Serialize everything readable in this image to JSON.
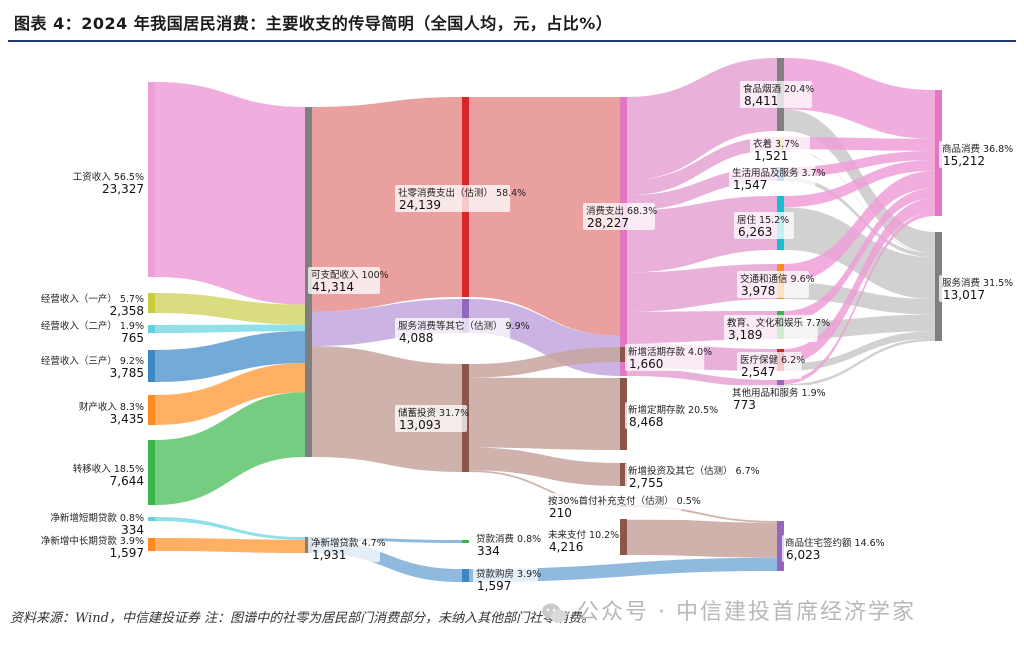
{
  "title": "图表 4：2024 年我国居民消费：主要收支的传导简明（全国人均，元，占比%）",
  "footer": "资料来源：Wind，中信建投证券  注：图谱中的社零为居民部门消费部分，未纳入其他部门社零消费。",
  "watermark": "公众号 · 中信建投首席经济学家",
  "chart_data": {
    "type": "sankey",
    "title": "2024 年我国居民消费：主要收支的传导简明（全国人均，元，占比%）",
    "units": "元",
    "nodes": [
      {
        "id": "wage",
        "label": "工资收入 56.5%",
        "value": "23,327",
        "color": "#ee9fd7"
      },
      {
        "id": "biz1",
        "label": "经营收入（一产） 5.7%",
        "value": "2,358",
        "color": "#c9cc3f"
      },
      {
        "id": "biz2",
        "label": "经营收入（二产） 1.9%",
        "value": "765",
        "color": "#5ed1de"
      },
      {
        "id": "biz3",
        "label": "经营收入（三产） 9.2%",
        "value": "3,785",
        "color": "#3b87c4"
      },
      {
        "id": "prop",
        "label": "财产收入 8.3%",
        "value": "3,435",
        "color": "#ff8a1f"
      },
      {
        "id": "trans",
        "label": "转移收入 18.5%",
        "value": "7,644",
        "color": "#3cb44b"
      },
      {
        "id": "shortloan",
        "label": "净新增短期贷款 0.8%",
        "value": "334",
        "color": "#5ed1de"
      },
      {
        "id": "longloan",
        "label": "净新增中长期贷款 3.9%",
        "value": "1,597",
        "color": "#ff8a1f"
      },
      {
        "id": "disp",
        "label": "可支配收入 100%",
        "value": "41,314",
        "color": "#7f7f7f"
      },
      {
        "id": "netloan",
        "label": "净新增贷款 4.7%",
        "value": "1,931",
        "color": "#7f7f7f"
      },
      {
        "id": "retail",
        "label": "社零消费支出（估测） 58.4%",
        "value": "24,139",
        "color": "#d62728"
      },
      {
        "id": "service",
        "label": "服务消费等其它（估测） 9.9%",
        "value": "4,088",
        "color": "#9467bd"
      },
      {
        "id": "saving",
        "label": "储蓄投资 31.7%",
        "value": "13,093",
        "color": "#8c564b"
      },
      {
        "id": "loancons",
        "label": "贷款消费 0.8%",
        "value": "334",
        "color": "#3cb44b"
      },
      {
        "id": "loanhouse",
        "label": "贷款购房 3.9%",
        "value": "1,597",
        "color": "#3b87c4"
      },
      {
        "id": "consume",
        "label": "消费支出 68.3%",
        "value": "28,227",
        "color": "#e377c2"
      },
      {
        "id": "demand",
        "label": "新增活期存款 4.0%",
        "value": "1,660",
        "color": "#8c564b"
      },
      {
        "id": "time",
        "label": "新增定期存款 20.5%",
        "value": "8,468",
        "color": "#8c564b"
      },
      {
        "id": "invest",
        "label": "新增投资及其它（估测） 6.7%",
        "value": "2,755",
        "color": "#8c564b"
      },
      {
        "id": "downpay",
        "label": "按30%首付补充支付（估测） 0.5%",
        "value": "210",
        "color": "#8c564b"
      },
      {
        "id": "unpaid",
        "label": "未来支付 10.2%",
        "value": "4,216",
        "color": "#8c564b"
      },
      {
        "id": "food",
        "label": "食品烟酒 20.4%",
        "value": "8,411",
        "color": "#7f7f7f"
      },
      {
        "id": "cloth",
        "label": "衣着 3.7%",
        "value": "1,521",
        "color": "#c9cc3f"
      },
      {
        "id": "daily",
        "label": "生活用品及服务 3.7%",
        "value": "1,547",
        "color": "#3b87c4"
      },
      {
        "id": "house",
        "label": "居住 15.2%",
        "value": "6,263",
        "color": "#17becf"
      },
      {
        "id": "transport",
        "label": "交通和通信 9.6%",
        "value": "3,978",
        "color": "#ff8a1f"
      },
      {
        "id": "edu",
        "label": "教育、文化和娱乐 7.7%",
        "value": "3,189",
        "color": "#3cb44b"
      },
      {
        "id": "med",
        "label": "医疗保健 6.2%",
        "value": "2,547",
        "color": "#d62728"
      },
      {
        "id": "other",
        "label": "其他用品和服务 1.9%",
        "value": "773",
        "color": "#9467bd"
      },
      {
        "id": "goods",
        "label": "商品消费 36.8%",
        "value": "15,212",
        "color": "#e377c2"
      },
      {
        "id": "services",
        "label": "服务消费 31.5%",
        "value": "13,017",
        "color": "#7f7f7f"
      },
      {
        "id": "houseContract",
        "label": "商品住宅签约额 14.6%",
        "value": "6,023",
        "color": "#9467bd"
      }
    ],
    "links": [
      {
        "source": "wage",
        "target": "disp",
        "value": 23327
      },
      {
        "source": "biz1",
        "target": "disp",
        "value": 2358
      },
      {
        "source": "biz2",
        "target": "disp",
        "value": 765
      },
      {
        "source": "biz3",
        "target": "disp",
        "value": 3785
      },
      {
        "source": "prop",
        "target": "disp",
        "value": 3435
      },
      {
        "source": "trans",
        "target": "disp",
        "value": 7644
      },
      {
        "source": "shortloan",
        "target": "netloan",
        "value": 334
      },
      {
        "source": "longloan",
        "target": "netloan",
        "value": 1597
      },
      {
        "source": "disp",
        "target": "retail",
        "value": 24139
      },
      {
        "source": "disp",
        "target": "service",
        "value": 4088
      },
      {
        "source": "disp",
        "target": "saving",
        "value": 13093
      },
      {
        "source": "netloan",
        "target": "loancons",
        "value": 334
      },
      {
        "source": "netloan",
        "target": "loanhouse",
        "value": 1597
      },
      {
        "source": "retail",
        "target": "consume",
        "value": 24139
      },
      {
        "source": "service",
        "target": "consume",
        "value": 4088
      },
      {
        "source": "saving",
        "target": "demand",
        "value": 1660
      },
      {
        "source": "saving",
        "target": "time",
        "value": 8468
      },
      {
        "source": "saving",
        "target": "invest",
        "value": 2755
      },
      {
        "source": "saving",
        "target": "downpay",
        "value": 210
      },
      {
        "source": "consume",
        "target": "food",
        "value": 8411
      },
      {
        "source": "consume",
        "target": "cloth",
        "value": 1521
      },
      {
        "source": "consume",
        "target": "daily",
        "value": 1547
      },
      {
        "source": "consume",
        "target": "house",
        "value": 6263
      },
      {
        "source": "consume",
        "target": "transport",
        "value": 3978
      },
      {
        "source": "consume",
        "target": "edu",
        "value": 3189
      },
      {
        "source": "consume",
        "target": "med",
        "value": 2547
      },
      {
        "source": "consume",
        "target": "other",
        "value": 773
      },
      {
        "source": "downpay",
        "target": "houseContract",
        "value": 210
      },
      {
        "source": "unpaid",
        "target": "houseContract",
        "value": 4216
      },
      {
        "source": "loanhouse",
        "target": "houseContract",
        "value": 1597
      },
      {
        "source": "food",
        "target": "goods",
        "value": 5900
      },
      {
        "source": "food",
        "target": "services",
        "value": 2511
      },
      {
        "source": "cloth",
        "target": "goods",
        "value": 1450
      },
      {
        "source": "cloth",
        "target": "services",
        "value": 71
      },
      {
        "source": "daily",
        "target": "goods",
        "value": 1100
      },
      {
        "source": "daily",
        "target": "services",
        "value": 447
      },
      {
        "source": "house",
        "target": "goods",
        "value": 1300
      },
      {
        "source": "house",
        "target": "services",
        "value": 4963
      },
      {
        "source": "transport",
        "target": "goods",
        "value": 2100
      },
      {
        "source": "transport",
        "target": "services",
        "value": 1878
      },
      {
        "source": "edu",
        "target": "goods",
        "value": 1200
      },
      {
        "source": "edu",
        "target": "services",
        "value": 1989
      },
      {
        "source": "med",
        "target": "goods",
        "value": 1700
      },
      {
        "source": "med",
        "target": "services",
        "value": 847
      },
      {
        "source": "other",
        "target": "goods",
        "value": 462
      },
      {
        "source": "other",
        "target": "services",
        "value": 311
      }
    ]
  }
}
